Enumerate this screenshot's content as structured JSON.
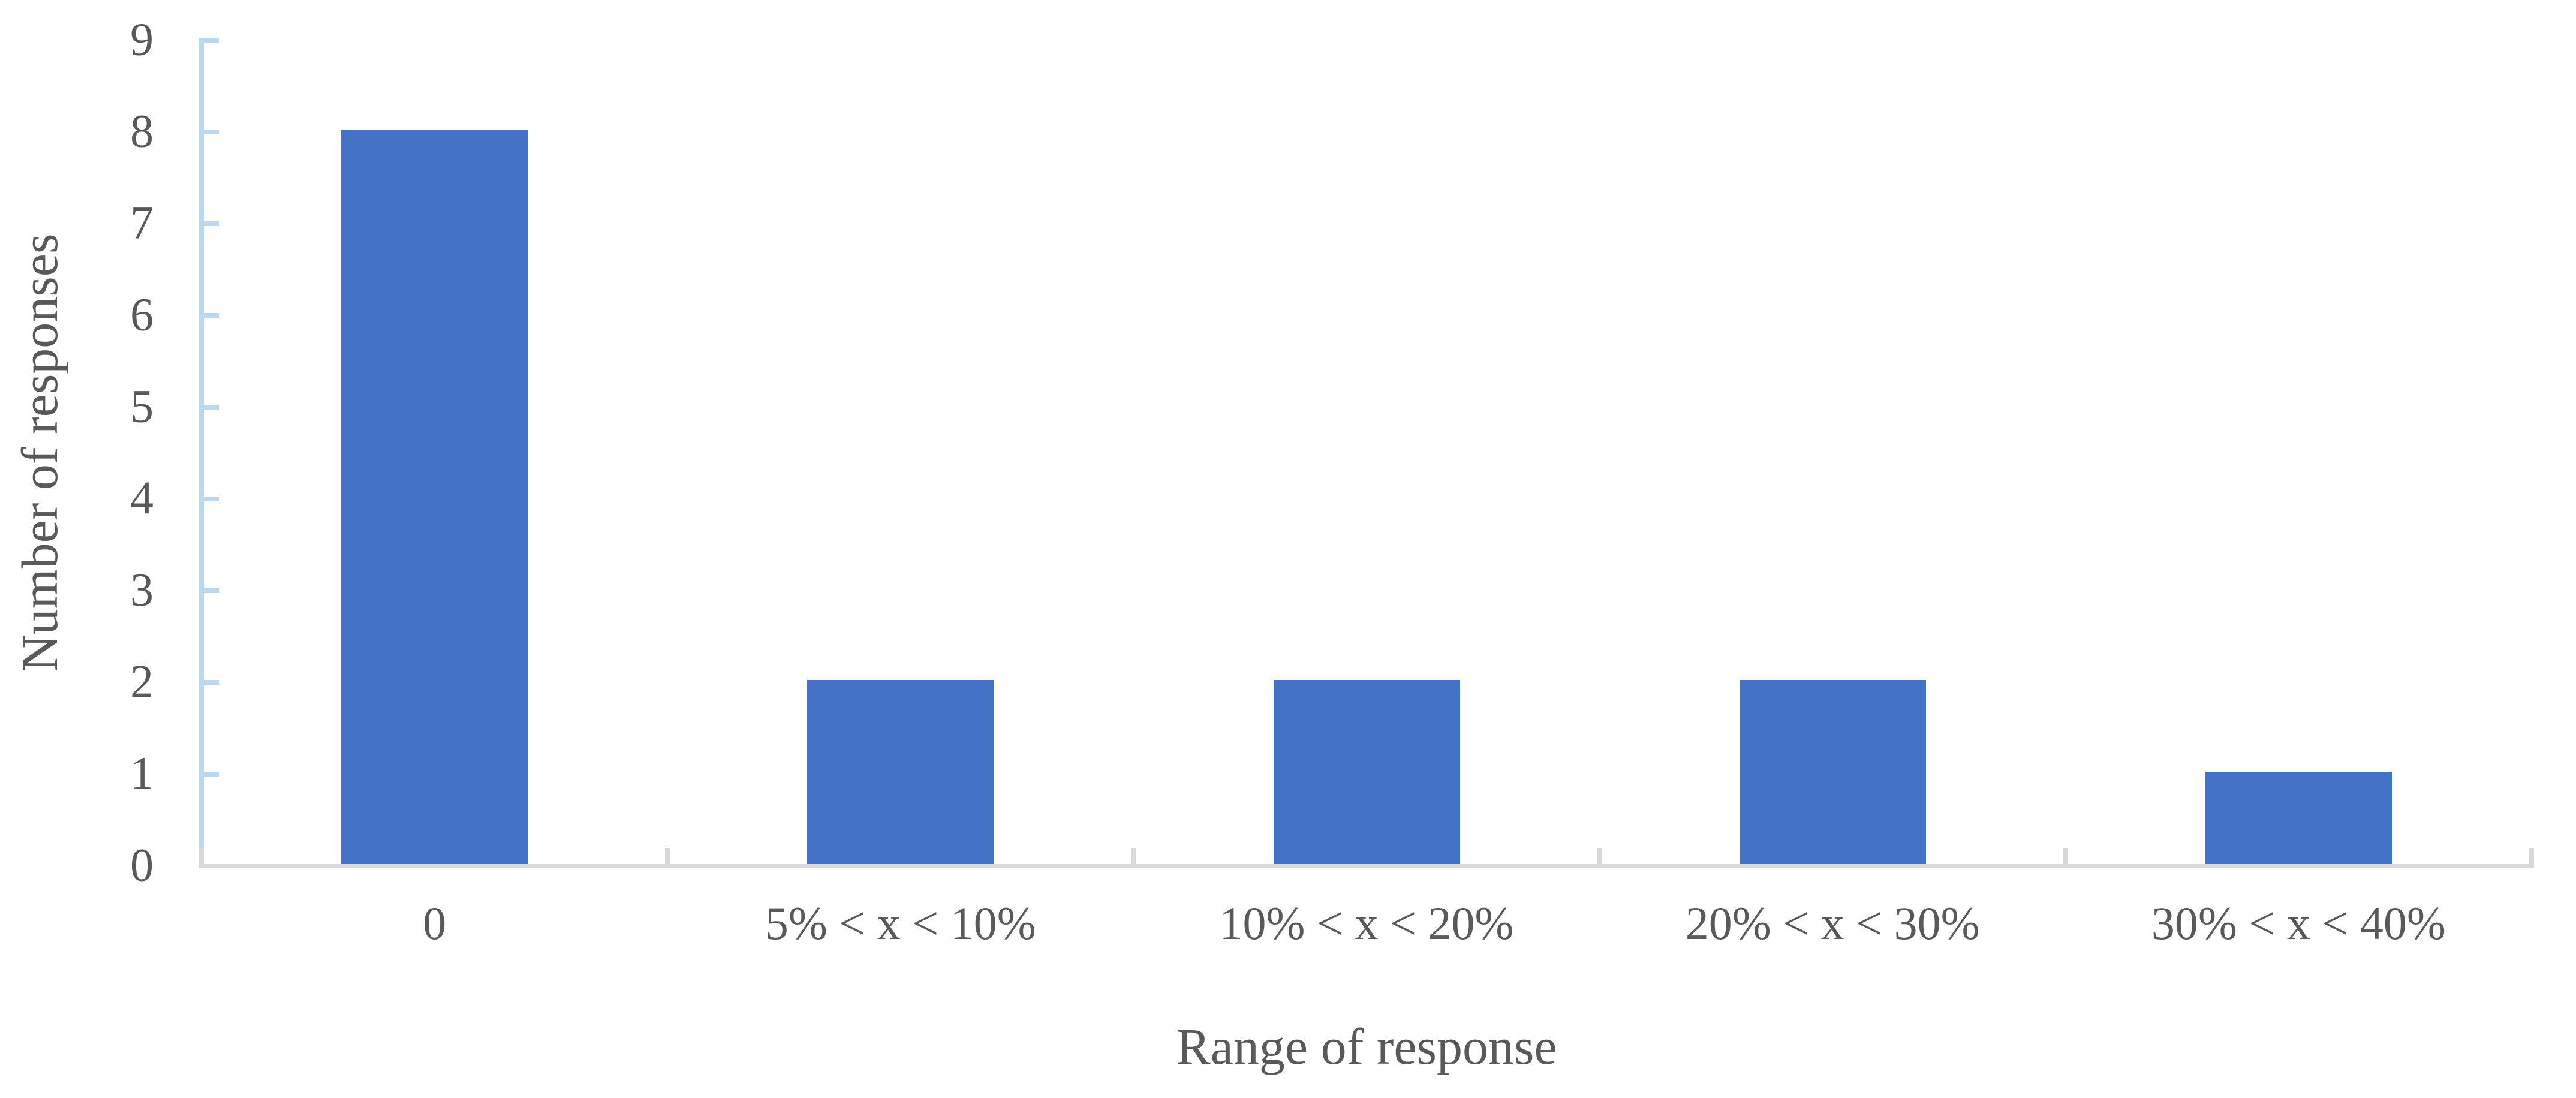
{
  "chart_data": {
    "type": "bar",
    "title": "",
    "categories": [
      "0",
      "5% < x < 10%",
      "10% < x < 20%",
      "20% < x < 30%",
      "30% < x < 40%"
    ],
    "values": [
      8,
      2,
      2,
      2,
      1
    ],
    "series": [
      {
        "name": "Number of responses",
        "values": [
          8,
          2,
          2,
          2,
          1
        ]
      }
    ],
    "xlabel": "Range of response",
    "ylabel": "Number of responses",
    "ylim": [
      0,
      9
    ],
    "yticks": [
      0,
      1,
      2,
      3,
      4,
      5,
      6,
      7,
      8,
      9
    ],
    "grid": false,
    "legend_position": "none",
    "bar_color": "#4472C4",
    "value_axis_color": "#BDD7EE",
    "category_axis_color": "#D9D9D9",
    "text_color": "#595959",
    "background_color": "#FFFFFF"
  }
}
